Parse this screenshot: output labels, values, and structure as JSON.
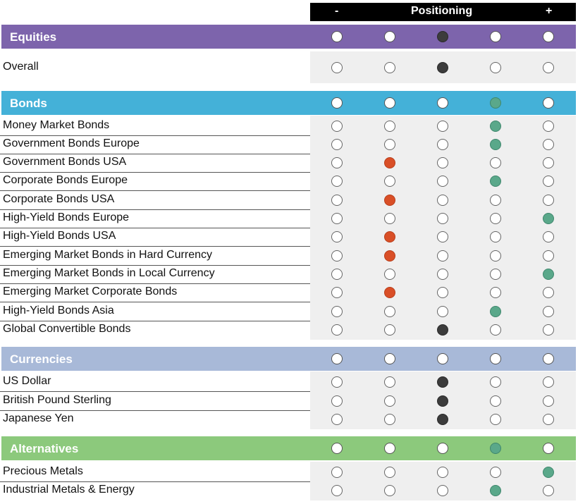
{
  "header": {
    "minus": "-",
    "title": "Positioning",
    "plus": "+"
  },
  "colors": {
    "equities": "#7d64ac",
    "bonds": "#44b1d8",
    "currencies": "#a8b9d8",
    "alternatives": "#8cc97c",
    "dark": "#3c3c3c",
    "red": "#d94f27",
    "green": "#5aa88a"
  },
  "sections": [
    {
      "title": "Equities",
      "color": "#7d64ac",
      "band_state": "dark",
      "band_pos": 3,
      "rows": [
        {
          "label": "Overall",
          "pos": 3,
          "state": "dark"
        }
      ]
    },
    {
      "title": "Bonds",
      "color": "#44b1d8",
      "band_state": "green",
      "band_pos": 4,
      "rows": [
        {
          "label": "Money Market Bonds",
          "pos": 4,
          "state": "green"
        },
        {
          "label": "Government Bonds Europe",
          "pos": 4,
          "state": "green"
        },
        {
          "label": "Government Bonds USA",
          "pos": 2,
          "state": "red"
        },
        {
          "label": "Corporate Bonds Europe",
          "pos": 4,
          "state": "green"
        },
        {
          "label": "Corporate Bonds USA",
          "pos": 2,
          "state": "red"
        },
        {
          "label": "High-Yield Bonds Europe",
          "pos": 5,
          "state": "green"
        },
        {
          "label": "High-Yield Bonds USA",
          "pos": 2,
          "state": "red"
        },
        {
          "label": "Emerging Market Bonds in Hard Currency",
          "pos": 2,
          "state": "red"
        },
        {
          "label": "Emerging Market Bonds in Local Currency",
          "pos": 5,
          "state": "green"
        },
        {
          "label": "Emerging Market Corporate Bonds",
          "pos": 2,
          "state": "red"
        },
        {
          "label": "High-Yield Bonds Asia",
          "pos": 4,
          "state": "green"
        },
        {
          "label": "Global Convertible Bonds",
          "pos": 3,
          "state": "dark"
        }
      ]
    },
    {
      "title": "Currencies",
      "color": "#a8b9d8",
      "band_state": "none",
      "band_pos": 0,
      "rows": [
        {
          "label": "US Dollar",
          "pos": 3,
          "state": "dark"
        },
        {
          "label": "British Pound Sterling",
          "pos": 3,
          "state": "dark"
        },
        {
          "label": "Japanese Yen",
          "pos": 3,
          "state": "dark"
        }
      ]
    },
    {
      "title": "Alternatives",
      "color": "#8cc97c",
      "band_state": "green",
      "band_pos": 4,
      "rows": [
        {
          "label": "Precious Metals",
          "pos": 5,
          "state": "green"
        },
        {
          "label": "Industrial Metals & Energy",
          "pos": 4,
          "state": "green"
        }
      ]
    }
  ]
}
